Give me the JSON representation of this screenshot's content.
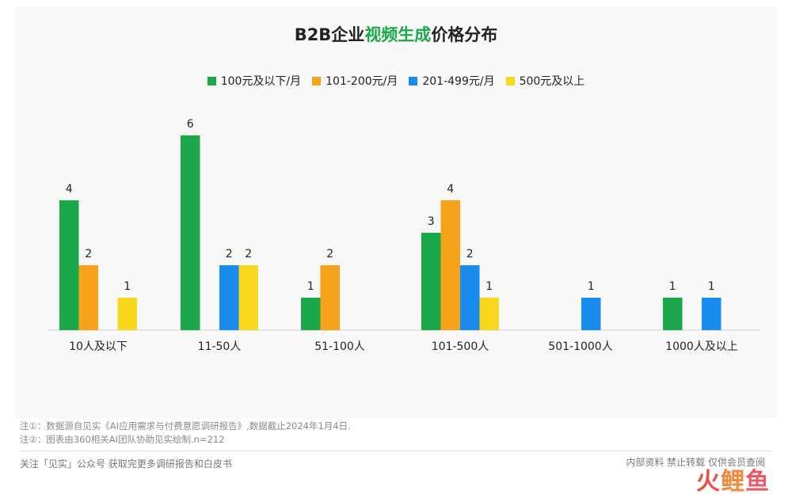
{
  "title": {
    "prefix": "B2B企业",
    "highlight": "视频生成",
    "suffix": "价格分布"
  },
  "colors": {
    "accent": "#1ba84a"
  },
  "chart_data": {
    "type": "bar",
    "categories": [
      "10人及以下",
      "11-50人",
      "51-100人",
      "101-500人",
      "501-1000人",
      "1000人及以上"
    ],
    "series": [
      {
        "name": "100元及以下/月",
        "color": "#1ba84a",
        "values": [
          4,
          6,
          1,
          3,
          0,
          1
        ]
      },
      {
        "name": "101-200元/月",
        "color": "#f7a21b",
        "values": [
          2,
          0,
          2,
          4,
          0,
          0
        ]
      },
      {
        "name": "201-499元/月",
        "color": "#1a8cf0",
        "values": [
          0,
          2,
          0,
          2,
          1,
          1
        ]
      },
      {
        "name": "500元及以上",
        "color": "#f9d71c",
        "values": [
          1,
          2,
          0,
          1,
          0,
          0
        ]
      }
    ],
    "ylim": [
      0,
      6
    ],
    "legend": "top-center",
    "grid": false
  },
  "notes": [
    "注①：数据源自见实《AI应用需求与付费意愿调研报告》,数据截止2024年1月4日.",
    "注②：图表由360相关AI团队协助见实绘制.n=212"
  ],
  "footer": {
    "left": "关注「见实」公众号 获取完更多调研报告和白皮书",
    "right": "内部资料 禁止转载 仅供会员查阅"
  },
  "watermark": {
    "a": "火",
    "b": "鲤",
    "c": "鱼"
  }
}
